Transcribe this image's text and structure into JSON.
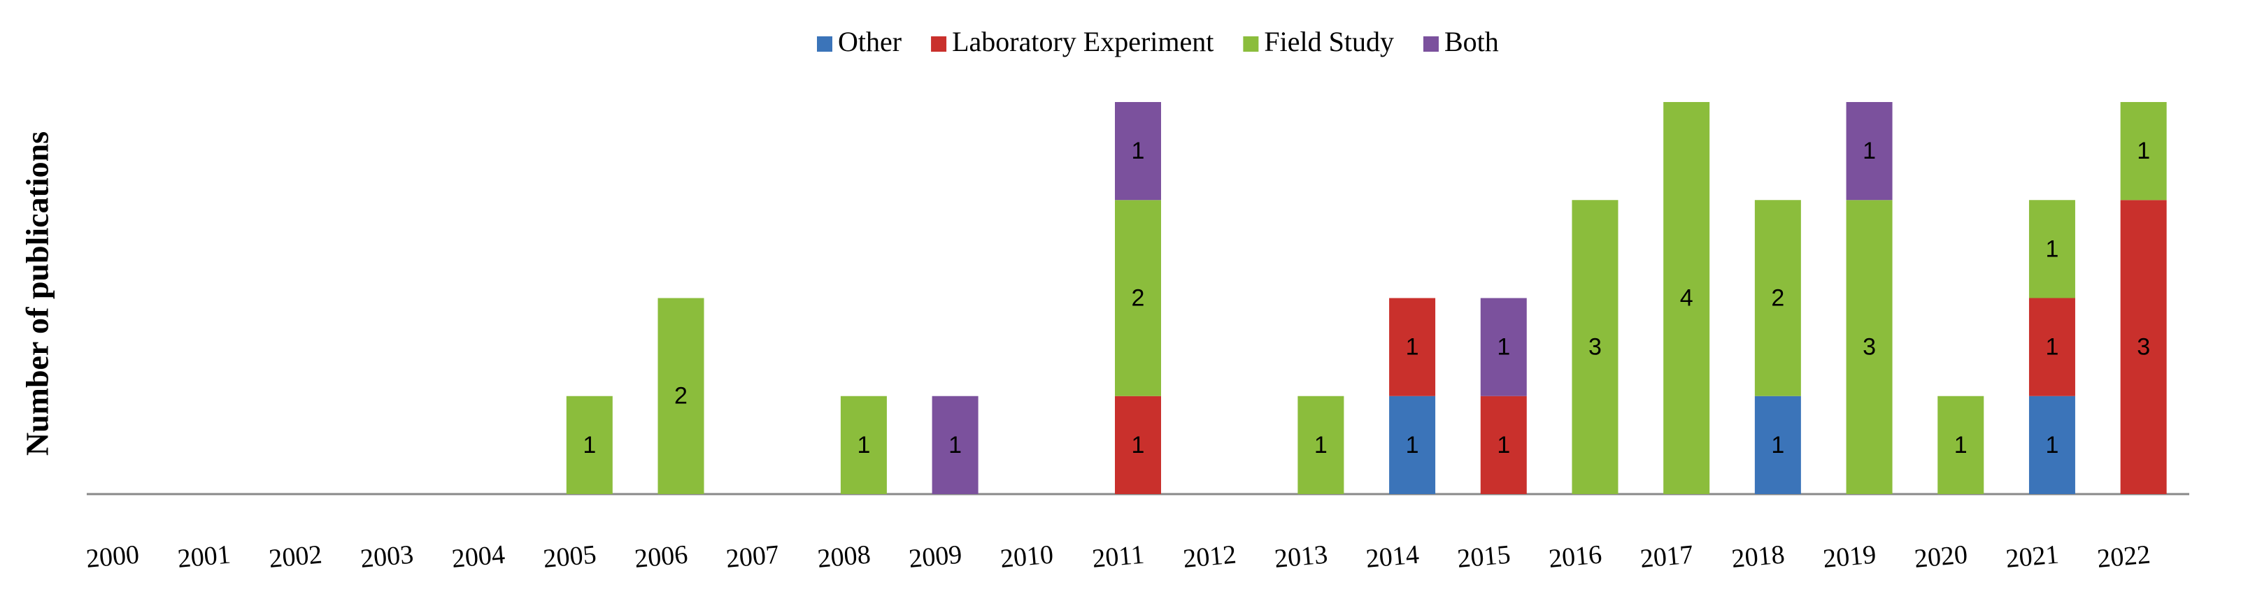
{
  "chart_data": {
    "type": "stacked-bar",
    "y_label": "Number of publications",
    "categories": [
      "2000",
      "2001",
      "2002",
      "2003",
      "2004",
      "2005",
      "2006",
      "2007",
      "2008",
      "2009",
      "2010",
      "2011",
      "2012",
      "2013",
      "2014",
      "2015",
      "2016",
      "2017",
      "2018",
      "2019",
      "2020",
      "2021",
      "2022"
    ],
    "ylim": [
      0,
      4
    ],
    "grid": false,
    "legend": "top",
    "series": [
      {
        "name": "Other",
        "color": "#3b74b9",
        "values": [
          null,
          null,
          null,
          null,
          null,
          null,
          null,
          null,
          null,
          null,
          null,
          null,
          null,
          null,
          1,
          null,
          null,
          null,
          1,
          null,
          null,
          1,
          null
        ]
      },
      {
        "name": "Laboratory Experiment",
        "color": "#c9302c",
        "values": [
          null,
          null,
          null,
          null,
          null,
          null,
          null,
          null,
          null,
          null,
          null,
          1,
          null,
          null,
          1,
          1,
          null,
          null,
          null,
          null,
          null,
          1,
          3
        ]
      },
      {
        "name": "Field Study",
        "color": "#8bbd3c",
        "values": [
          null,
          null,
          null,
          null,
          null,
          1,
          2,
          null,
          1,
          null,
          null,
          2,
          null,
          1,
          null,
          null,
          3,
          4,
          2,
          3,
          1,
          1,
          1
        ]
      },
      {
        "name": "Both",
        "color": "#7b519d",
        "values": [
          null,
          null,
          null,
          null,
          null,
          null,
          null,
          null,
          null,
          1,
          null,
          1,
          null,
          null,
          null,
          1,
          null,
          null,
          null,
          1,
          null,
          null,
          null
        ]
      }
    ]
  }
}
